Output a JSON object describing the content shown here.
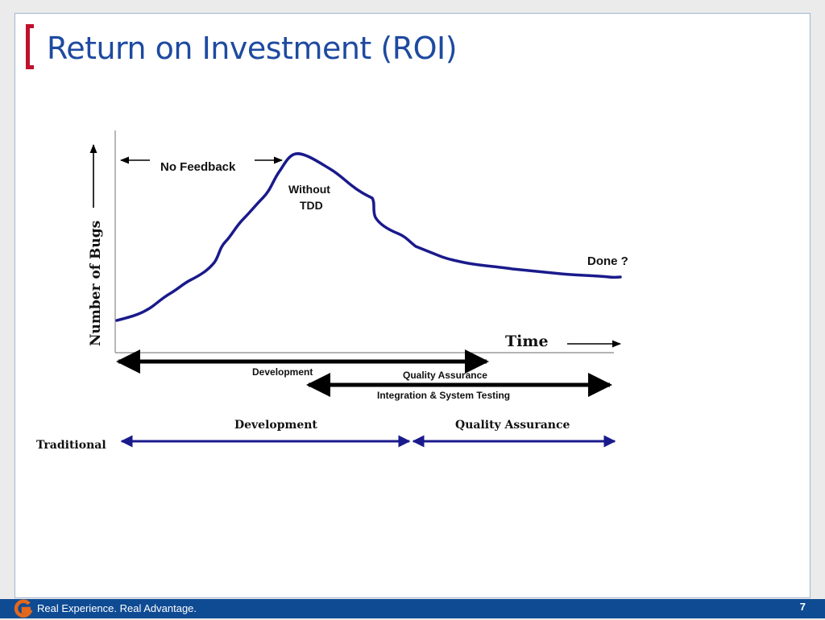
{
  "slide": {
    "title": "Return on Investment (ROI)",
    "page_number": "7"
  },
  "footer": {
    "tagline": "Real Experience. Real Advantage."
  },
  "diagram": {
    "y_axis_label": "Number of Bugs",
    "x_axis_label": "Time",
    "no_feedback": "No Feedback",
    "curve_label_line1": "Without",
    "curve_label_line2": "TDD",
    "done": "Done ?",
    "tdd_development": "Development",
    "tdd_quality_assurance": "Quality Assurance",
    "tdd_integration": "Integration & System Testing",
    "traditional": "Traditional",
    "traditional_development": "Development",
    "traditional_quality_assurance": "Quality Assurance"
  },
  "colors": {
    "title": "#1e4aa0",
    "bracket": "#c0102d",
    "curve": "#1a1a8c",
    "traditional_arrows": "#1a1a8c",
    "footer_bg": "#0f4b93"
  }
}
